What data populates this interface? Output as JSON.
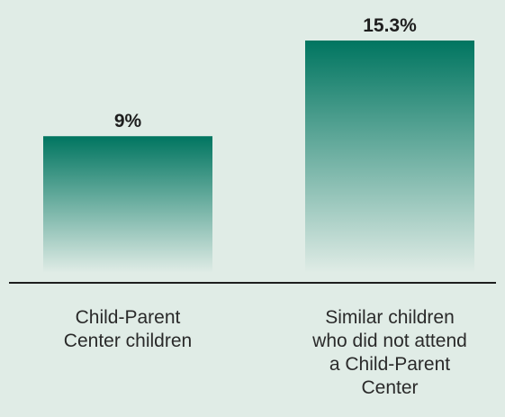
{
  "chart_data": {
    "type": "bar",
    "categories": [
      [
        "Child-Parent",
        "Center children"
      ],
      [
        "Similar children",
        "who did not attend",
        "a Child-Parent",
        "Center"
      ]
    ],
    "values": [
      9,
      15.3
    ],
    "value_labels": [
      "9%",
      "15.3%"
    ],
    "title": "",
    "xlabel": "",
    "ylabel": "",
    "ylim": [
      0,
      15.3
    ],
    "grid": false,
    "colors": {
      "background": "#e0ece6",
      "bar_top": "#007560",
      "bar_bottom": "#e0ece6",
      "baseline": "#1e1e1e"
    }
  }
}
